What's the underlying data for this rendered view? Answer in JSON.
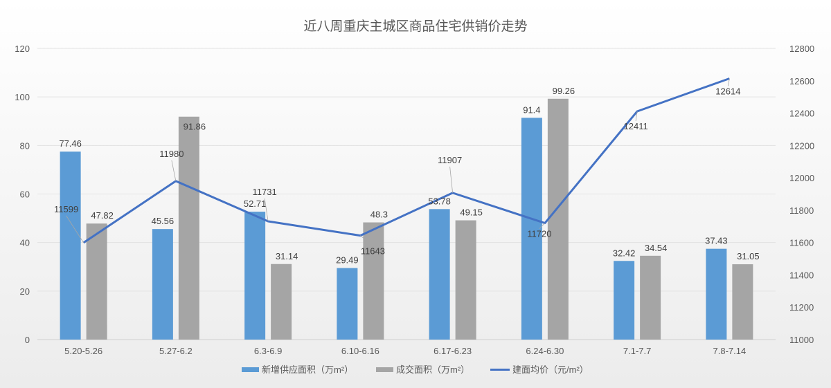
{
  "chart_data": {
    "type": "bar+line",
    "title": "近八周重庆主城区商品住宅供销价走势",
    "categories": [
      "5.20-5.26",
      "5.27-6.2",
      "6.3-6.9",
      "6.10-6.16",
      "6.17-6.23",
      "6.24-6.30",
      "7.1-7.7",
      "7.8-7.14"
    ],
    "series": [
      {
        "name": "新增供应面积（万m²）",
        "type": "bar",
        "axis": "left",
        "color": "#5b9bd5",
        "values": [
          77.46,
          45.56,
          52.71,
          29.49,
          53.78,
          91.4,
          32.42,
          37.43
        ]
      },
      {
        "name": "成交面积（万m²）",
        "type": "bar",
        "axis": "left",
        "color": "#a5a5a5",
        "values": [
          47.82,
          91.86,
          31.14,
          48.3,
          49.15,
          99.26,
          34.54,
          31.05
        ]
      },
      {
        "name": "建面均价（元/m²）",
        "type": "line",
        "axis": "right",
        "color": "#4472c4",
        "values": [
          11599,
          11980,
          11731,
          11643,
          11907,
          11720,
          12411,
          12614
        ]
      }
    ],
    "y_left": {
      "min": 0,
      "max": 120,
      "ticks": [
        0,
        20,
        40,
        60,
        80,
        100,
        120
      ]
    },
    "y_right": {
      "min": 11000,
      "max": 12800,
      "ticks": [
        11000,
        11200,
        11400,
        11600,
        11800,
        12000,
        12200,
        12400,
        12600,
        12800
      ]
    },
    "grid": true,
    "legend": "bottom",
    "data_labels": true
  }
}
